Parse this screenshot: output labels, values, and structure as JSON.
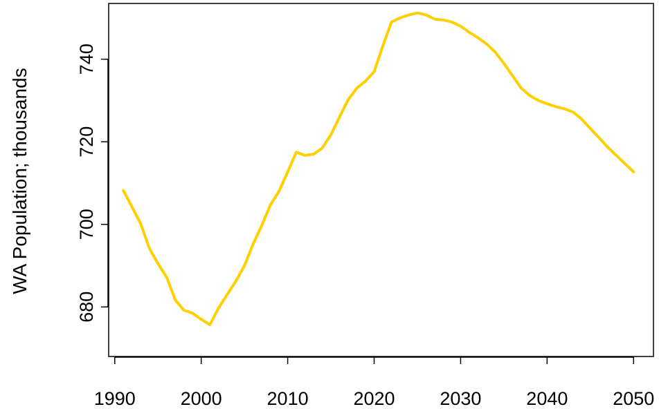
{
  "chart_data": {
    "type": "line",
    "title": "",
    "xlabel": "",
    "ylabel": "WA Population; thousands",
    "xlim": [
      1989.3,
      2052.3
    ],
    "ylim": [
      668,
      753.5
    ],
    "x_ticks": [
      1990,
      2000,
      2010,
      2020,
      2030,
      2040,
      2050
    ],
    "y_ticks": [
      680,
      700,
      720,
      740
    ],
    "grid": false,
    "line_color": "#FFD000",
    "series": [
      {
        "x": [
          1991,
          1992,
          1993,
          1994,
          1995,
          1996,
          1997,
          1998,
          1999,
          2000,
          2001,
          2002,
          2003,
          2004,
          2005,
          2006,
          2007,
          2008,
          2009,
          2010,
          2011,
          2012,
          2013,
          2014,
          2015,
          2016,
          2017,
          2018,
          2019,
          2020,
          2021,
          2022,
          2023,
          2024,
          2025,
          2026,
          2027,
          2028,
          2029,
          2030,
          2031,
          2032,
          2033,
          2034,
          2035,
          2036,
          2037,
          2038,
          2039,
          2040,
          2041,
          2042,
          2043,
          2044,
          2045,
          2046,
          2047,
          2048,
          2049,
          2050
        ],
        "y": [
          708.2,
          704.2,
          700.2,
          694.2,
          690.5,
          687.2,
          681.7,
          679.2,
          678.5,
          677.0,
          675.7,
          679.7,
          683.0,
          686.2,
          690.0,
          695.2,
          699.7,
          704.7,
          708.0,
          712.7,
          717.5,
          716.7,
          717.0,
          718.5,
          721.7,
          726.0,
          730.2,
          733.0,
          734.7,
          737.0,
          743.2,
          749.0,
          750.0,
          750.7,
          751.2,
          750.7,
          749.7,
          749.5,
          749.0,
          748.0,
          746.5,
          745.2,
          743.7,
          741.7,
          739.0,
          736.0,
          733.0,
          731.2,
          730.0,
          729.2,
          728.5,
          728.0,
          727.2,
          725.5,
          723.2,
          721.0,
          718.7,
          716.7,
          714.7,
          712.7
        ]
      }
    ]
  }
}
